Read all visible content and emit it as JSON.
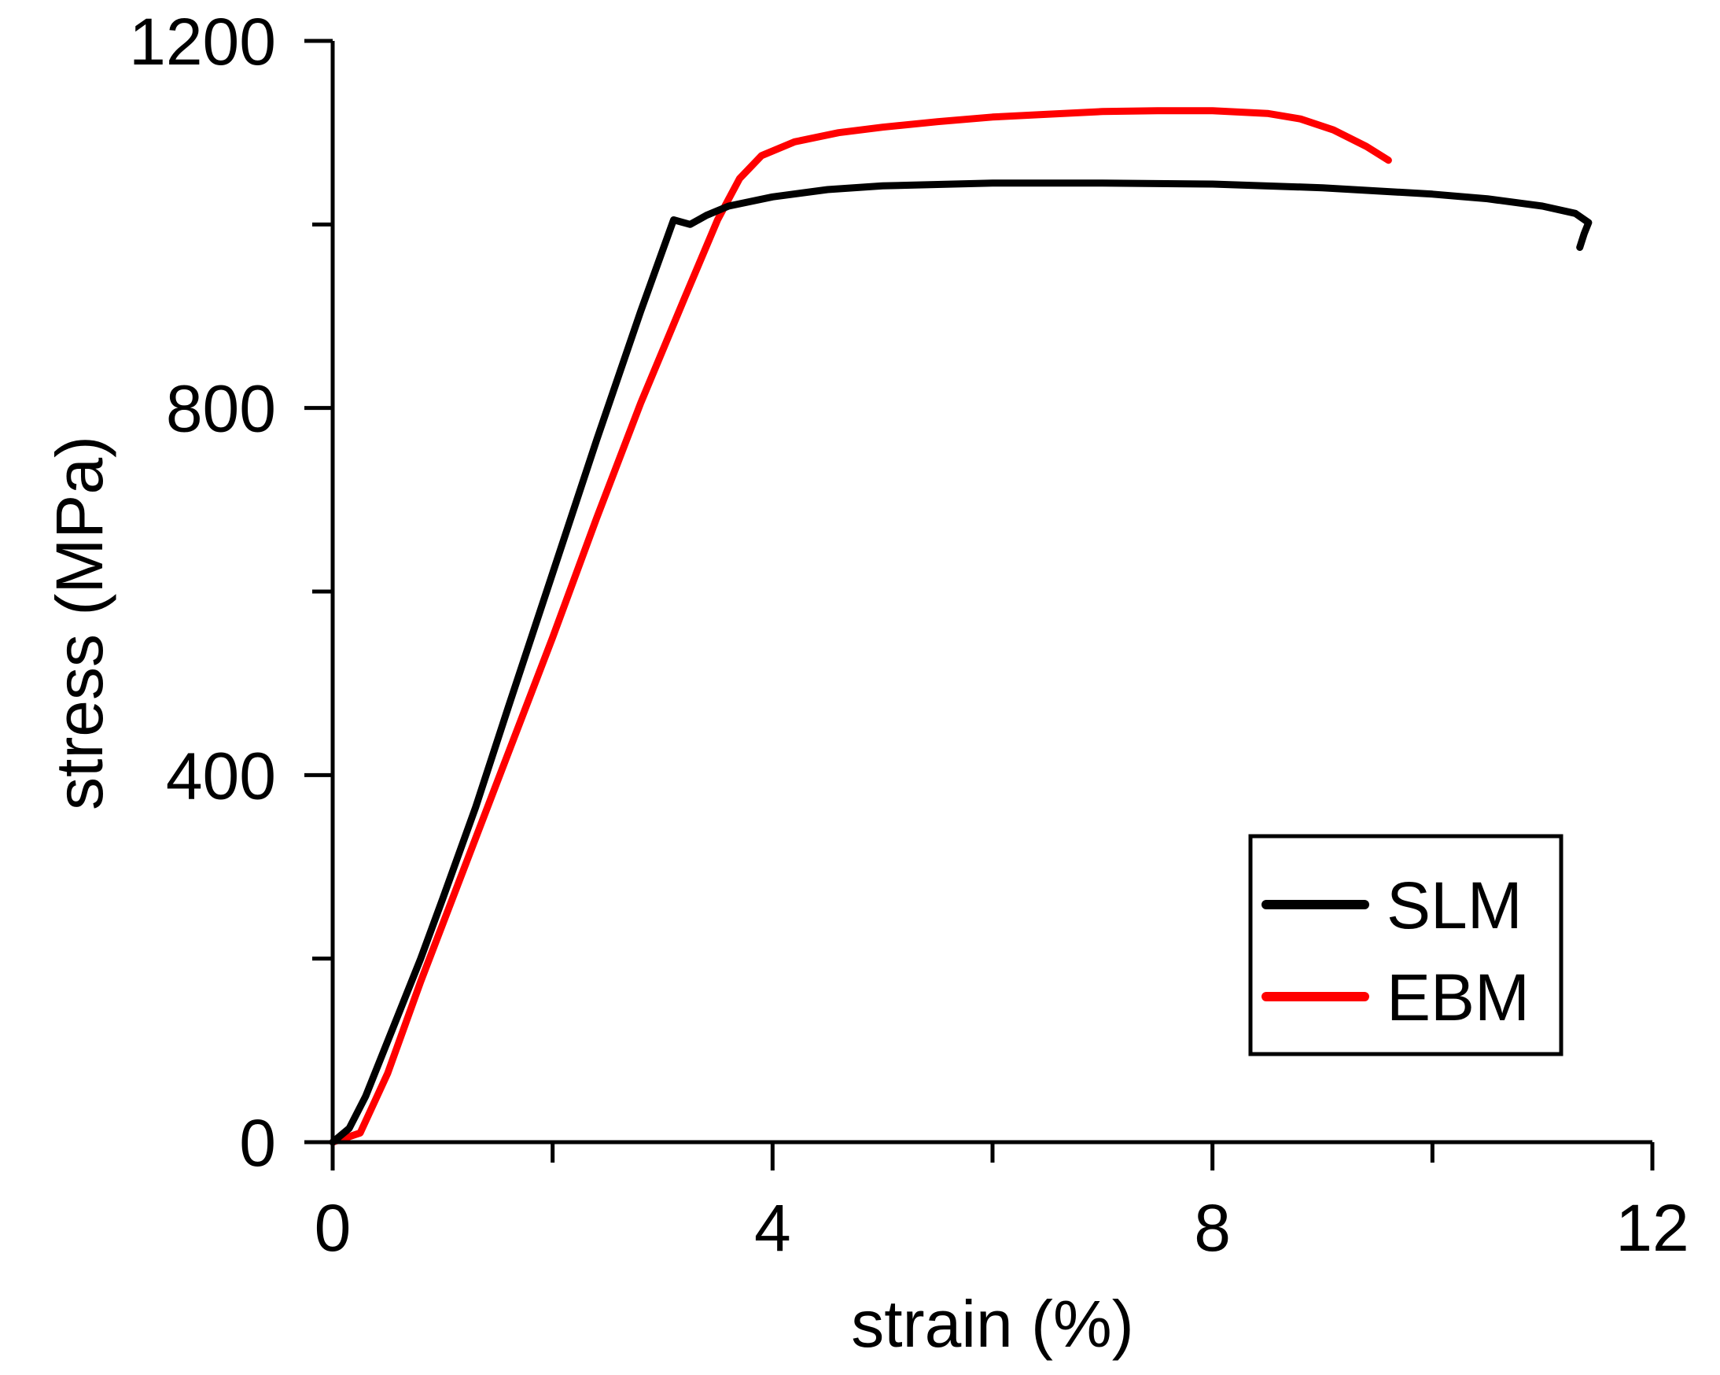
{
  "chart_data": {
    "type": "line",
    "title": "",
    "xlabel": "strain (%)",
    "ylabel": "stress (MPa)",
    "xlim": [
      0,
      12
    ],
    "ylim": [
      0,
      1200
    ],
    "x_ticks_major": [
      0,
      4,
      8,
      12
    ],
    "x_ticks_major_labels": [
      "0",
      "4",
      "8",
      "12"
    ],
    "x_ticks_minor": [
      2,
      6,
      10
    ],
    "y_ticks_major": [
      0,
      400,
      800,
      1200
    ],
    "y_ticks_major_labels": [
      "0",
      "400",
      "800",
      "1200"
    ],
    "y_ticks_minor": [
      200,
      600,
      1000
    ],
    "grid": false,
    "legend_position": "bottom-right",
    "series": [
      {
        "name": "SLM",
        "color": "#000000",
        "x": [
          0,
          0.15,
          0.3,
          0.5,
          0.8,
          1.0,
          1.3,
          1.6,
          2.0,
          2.4,
          2.8,
          3.1,
          3.25,
          3.4,
          3.6,
          4.0,
          4.5,
          5.0,
          6.0,
          7.0,
          8.0,
          9.0,
          10.0,
          10.5,
          11.0,
          11.3,
          11.42,
          11.38,
          11.34
        ],
        "y": [
          0,
          15,
          50,
          110,
          200,
          265,
          365,
          475,
          620,
          765,
          905,
          1005,
          1000,
          1010,
          1020,
          1030,
          1038,
          1042,
          1045,
          1045,
          1044,
          1040,
          1033,
          1028,
          1020,
          1012,
          1002,
          990,
          975
        ]
      },
      {
        "name": "EBM",
        "color": "#ff0000",
        "x": [
          0,
          0.25,
          0.5,
          0.8,
          1.2,
          1.6,
          2.0,
          2.4,
          2.8,
          3.2,
          3.5,
          3.7,
          3.9,
          4.2,
          4.6,
          5.0,
          5.5,
          6.0,
          6.5,
          7.0,
          7.5,
          8.0,
          8.5,
          8.8,
          9.1,
          9.4,
          9.6
        ],
        "y": [
          0,
          10,
          75,
          175,
          300,
          425,
          550,
          680,
          805,
          920,
          1005,
          1050,
          1075,
          1090,
          1100,
          1106,
          1112,
          1117,
          1120,
          1123,
          1124,
          1124,
          1121,
          1115,
          1103,
          1085,
          1070
        ]
      }
    ]
  }
}
